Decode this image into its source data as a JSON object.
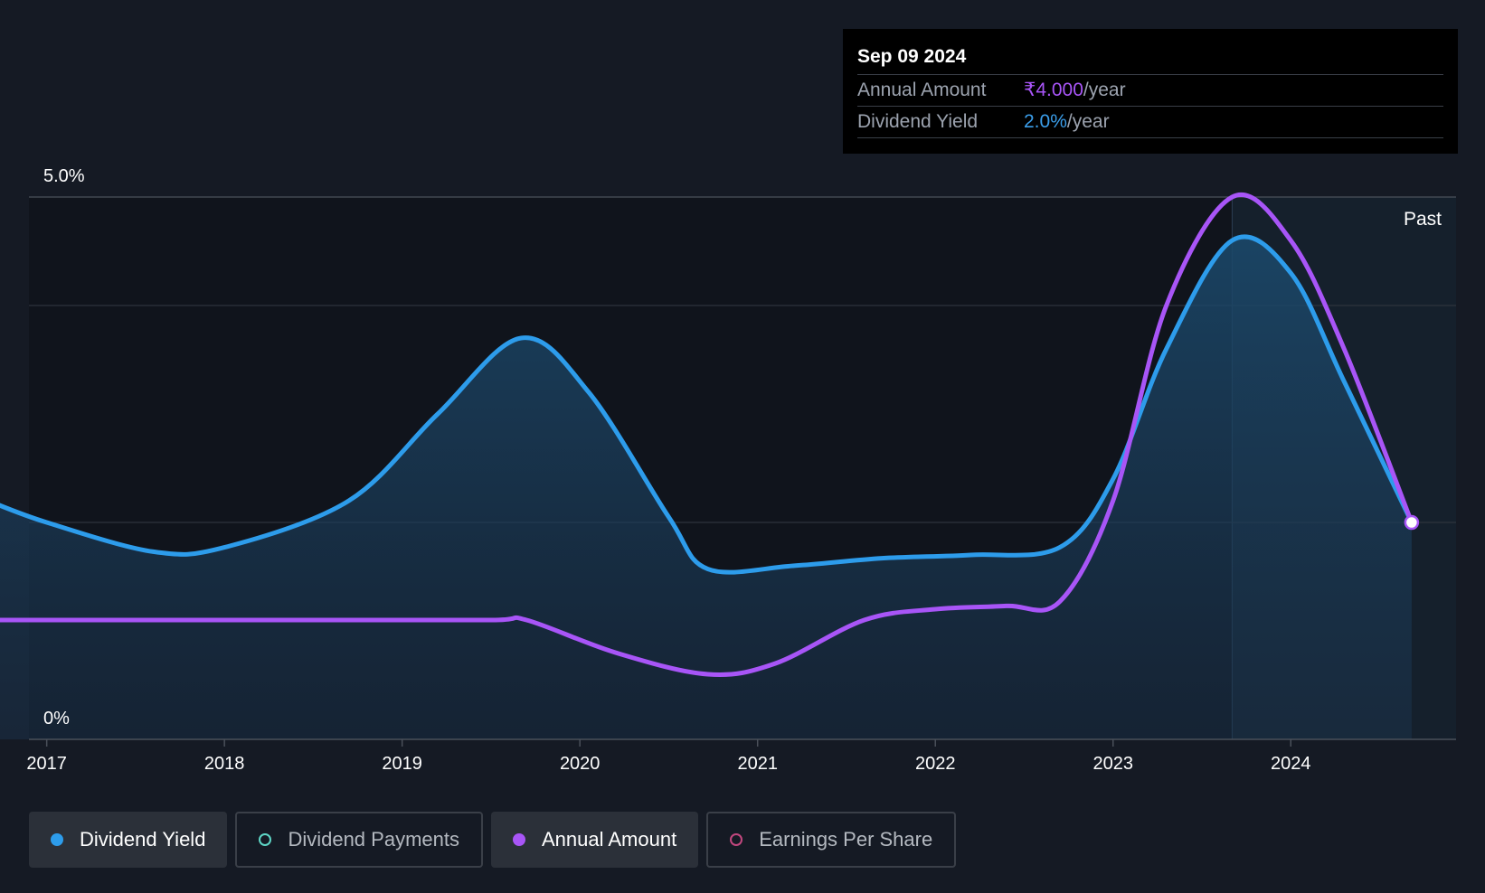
{
  "tooltip": {
    "date": "Sep 09 2024",
    "rows": [
      {
        "label": "Annual Amount",
        "value": "₹4.000",
        "unit": "/year",
        "color": "#a855f7"
      },
      {
        "label": "Dividend Yield",
        "value": "2.0%",
        "unit": "/year",
        "color": "#3b9eea"
      }
    ]
  },
  "legend": [
    {
      "label": "Dividend Yield",
      "active": true,
      "filled": true,
      "color": "#2d9ceb"
    },
    {
      "label": "Dividend Payments",
      "active": false,
      "filled": false,
      "color": "#5ed6c6"
    },
    {
      "label": "Annual Amount",
      "active": true,
      "filled": true,
      "color": "#a855f7"
    },
    {
      "label": "Earnings Per Share",
      "active": false,
      "filled": false,
      "color": "#c1477e"
    }
  ],
  "chart_data": {
    "type": "area",
    "y_axis_labels": [
      "5.0%",
      "0%"
    ],
    "ylim": [
      0,
      5
    ],
    "xlim": [
      2016.9,
      2024.93
    ],
    "x_ticks": [
      2017,
      2018,
      2019,
      2020,
      2021,
      2022,
      2023,
      2024
    ],
    "past_label": "Past",
    "past_start": 2023.67,
    "series": [
      {
        "name": "Dividend Yield",
        "color": "#2d9ceb",
        "fill": true,
        "points": [
          [
            2016.67,
            2.2
          ],
          [
            2017.0,
            2.0
          ],
          [
            2017.6,
            1.73
          ],
          [
            2018.0,
            1.77
          ],
          [
            2018.7,
            2.2
          ],
          [
            2019.2,
            3.0
          ],
          [
            2019.67,
            3.7
          ],
          [
            2020.05,
            3.2
          ],
          [
            2020.5,
            2.05
          ],
          [
            2020.72,
            1.57
          ],
          [
            2021.2,
            1.6
          ],
          [
            2021.7,
            1.67
          ],
          [
            2022.2,
            1.7
          ],
          [
            2022.7,
            1.77
          ],
          [
            2023.0,
            2.4
          ],
          [
            2023.3,
            3.6
          ],
          [
            2023.67,
            4.6
          ],
          [
            2024.0,
            4.3
          ],
          [
            2024.3,
            3.3
          ],
          [
            2024.68,
            2.0
          ]
        ]
      },
      {
        "name": "Annual Amount",
        "color": "#a855f7",
        "fill": false,
        "points": [
          [
            2016.67,
            1.1
          ],
          [
            2017.5,
            1.1
          ],
          [
            2018.5,
            1.1
          ],
          [
            2019.5,
            1.1
          ],
          [
            2019.7,
            1.1
          ],
          [
            2020.2,
            0.8
          ],
          [
            2020.72,
            0.6
          ],
          [
            2021.1,
            0.7
          ],
          [
            2021.6,
            1.1
          ],
          [
            2022.0,
            1.2
          ],
          [
            2022.4,
            1.23
          ],
          [
            2022.7,
            1.27
          ],
          [
            2023.0,
            2.2
          ],
          [
            2023.3,
            4.0
          ],
          [
            2023.67,
            5.0
          ],
          [
            2024.0,
            4.6
          ],
          [
            2024.3,
            3.6
          ],
          [
            2024.68,
            2.0
          ]
        ]
      }
    ]
  }
}
